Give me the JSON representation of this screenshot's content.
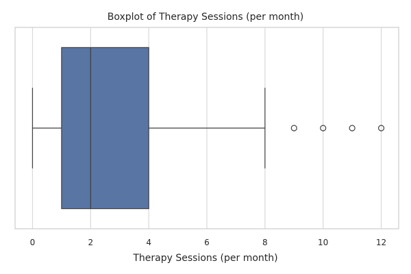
{
  "chart_data": {
    "type": "box",
    "title": "Boxplot of Therapy Sessions (per month)",
    "xlabel": "Therapy Sessions (per month)",
    "ylabel": "",
    "xlim": [
      -0.6,
      12.6
    ],
    "xticks": [
      0,
      2,
      4,
      6,
      8,
      10,
      12
    ],
    "orientation": "horizontal",
    "grid": "vertical",
    "series": [
      {
        "whisker_low": 0,
        "q1": 1,
        "median": 2,
        "q3": 4,
        "whisker_high": 8,
        "outliers": [
          9,
          10,
          11,
          12
        ]
      }
    ]
  },
  "colors": {
    "box_fill": "#5875a4",
    "line": "#3f3f3f",
    "grid": "#d9d9d9",
    "frame": "#cccccc",
    "text": "#262626"
  }
}
